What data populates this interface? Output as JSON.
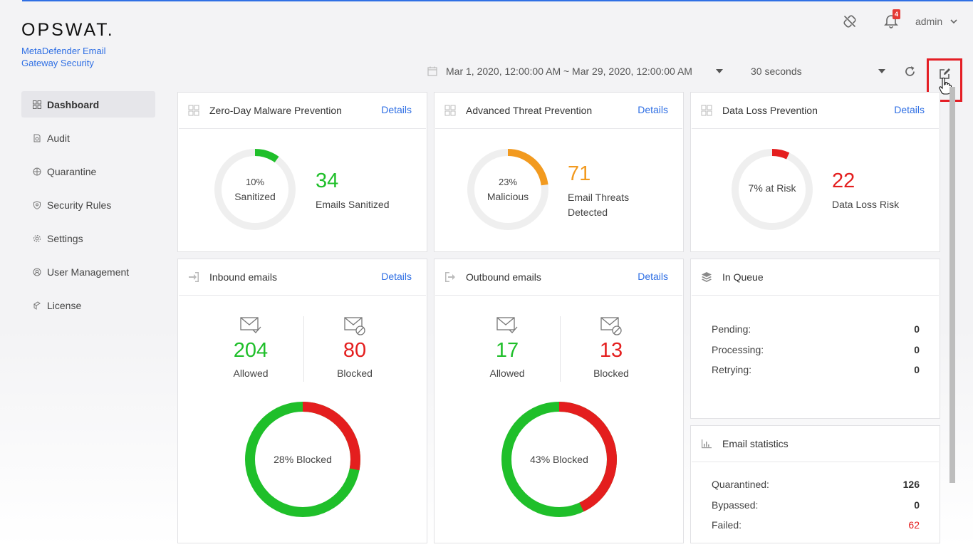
{
  "brand": {
    "logo": "OPSWAT.",
    "product": "MetaDefender Email Gateway Security"
  },
  "topbar": {
    "notification_count": "4",
    "user": "admin",
    "icons": [
      "unlink-icon",
      "bell-icon",
      "chevron-down-icon"
    ]
  },
  "filters": {
    "date_range": "Mar 1, 2020, 12:00:00 AM ~ Mar 29, 2020, 12:00:00 AM",
    "refresh_interval": "30 seconds"
  },
  "nav": [
    {
      "label": "Dashboard",
      "icon": "dashboard-icon",
      "active": true
    },
    {
      "label": "Audit",
      "icon": "audit-icon"
    },
    {
      "label": "Quarantine",
      "icon": "quarantine-icon"
    },
    {
      "label": "Security Rules",
      "icon": "shield-icon"
    },
    {
      "label": "Settings",
      "icon": "gear-icon"
    },
    {
      "label": "User Management",
      "icon": "user-icon"
    },
    {
      "label": "License",
      "icon": "license-icon"
    }
  ],
  "cards": {
    "zero_day": {
      "title": "Zero-Day Malware Prevention",
      "details": "Details",
      "ring_pct_line": "10%",
      "ring_word": "Sanitized",
      "value": "34",
      "label": "Emails Sanitized",
      "fraction": 0.1,
      "color": "#1fbf2a"
    },
    "atp": {
      "title": "Advanced Threat Prevention",
      "details": "Details",
      "ring_pct_line": "23%",
      "ring_word": "Malicious",
      "value": "71",
      "label_line1": "Email Threats",
      "label_line2": "Detected",
      "fraction": 0.23,
      "color": "#f29a1f"
    },
    "dlp": {
      "title": "Data Loss Prevention",
      "details": "Details",
      "ring_text": "7% at Risk",
      "value": "22",
      "label": "Data Loss Risk",
      "fraction": 0.07,
      "color": "#e41e1e"
    },
    "inbound": {
      "title": "Inbound emails",
      "details": "Details",
      "allowed": "204",
      "allowed_label": "Allowed",
      "blocked": "80",
      "blocked_label": "Blocked",
      "ring_text": "28% Blocked",
      "blocked_fraction": 0.28
    },
    "outbound": {
      "title": "Outbound emails",
      "details": "Details",
      "allowed": "17",
      "allowed_label": "Allowed",
      "blocked": "13",
      "blocked_label": "Blocked",
      "ring_text": "43% Blocked",
      "blocked_fraction": 0.43
    },
    "queue": {
      "title": "In Queue",
      "rows": [
        {
          "label": "Pending:",
          "value": "0"
        },
        {
          "label": "Processing:",
          "value": "0"
        },
        {
          "label": "Retrying:",
          "value": "0"
        }
      ]
    },
    "stats": {
      "title": "Email statistics",
      "rows": [
        {
          "label": "Quarantined:",
          "value": "126"
        },
        {
          "label": "Bypassed:",
          "value": "0"
        },
        {
          "label": "Failed:",
          "value": "62"
        }
      ]
    }
  },
  "colors": {
    "accent": "#2f6fe4",
    "green": "#1fbf2a",
    "red": "#e41e1e",
    "orange": "#f29a1f",
    "ring_track": "#efefef"
  }
}
